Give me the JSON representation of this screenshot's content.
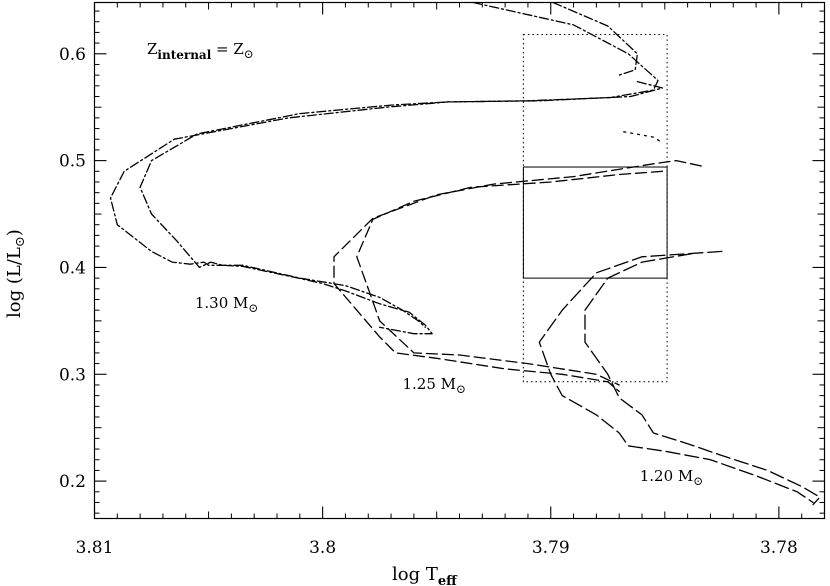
{
  "chart_data": {
    "type": "line",
    "title": "",
    "xlabel": "log  T",
    "xlabel_sub": "eff",
    "ylabel": "log  (L/L",
    "ylabel_sun": "⊙",
    "ylabel_close": ")",
    "xlim": [
      3.81,
      3.778
    ],
    "ylim": [
      0.165,
      0.648
    ],
    "x_reversed": true,
    "grid": false,
    "legend": "none",
    "xticks": [
      {
        "value": 3.81,
        "label": "3.81"
      },
      {
        "value": 3.8,
        "label": "3.8"
      },
      {
        "value": 3.79,
        "label": "3.79"
      },
      {
        "value": 3.78,
        "label": "3.78"
      }
    ],
    "yticks": [
      {
        "value": 0.2,
        "label": "0.2"
      },
      {
        "value": 0.3,
        "label": "0.3"
      },
      {
        "value": 0.4,
        "label": "0.4"
      },
      {
        "value": 0.5,
        "label": "0.5"
      },
      {
        "value": 0.6,
        "label": "0.6"
      }
    ],
    "annotations": [
      {
        "id": "metallicity",
        "text": "Z",
        "sub": "internal",
        "rest": "  = Z",
        "sun": "⊙",
        "x": 3.8077,
        "y": 0.6
      },
      {
        "id": "mass-130",
        "text": "1.30  M",
        "sun": "⊙",
        "x": 3.8056,
        "y": 0.362
      },
      {
        "id": "mass-125",
        "text": "1.25  M",
        "sun": "⊙",
        "x": 3.7965,
        "y": 0.286
      },
      {
        "id": "mass-120",
        "text": "1.20  M",
        "sun": "⊙",
        "x": 3.7861,
        "y": 0.2
      }
    ],
    "boxes": [
      {
        "name": "dotted-box",
        "style": "dotted",
        "x": [
          3.7912,
          3.7849
        ],
        "y": [
          0.293,
          0.618
        ]
      },
      {
        "name": "solid-box",
        "style": "solid",
        "x": [
          3.7912,
          3.7849
        ],
        "y": [
          0.39,
          0.494
        ]
      }
    ],
    "series": [
      {
        "mass": "1.30",
        "dash": "9 3 2 3",
        "points": [
          [
            3.7934,
            0.648
          ],
          [
            3.789,
            0.627
          ],
          [
            3.7866,
            0.6
          ],
          [
            3.7853,
            0.575
          ],
          [
            3.7855,
            0.566
          ],
          [
            3.7874,
            0.559
          ],
          [
            3.791,
            0.556
          ],
          [
            3.7945,
            0.555
          ],
          [
            3.797,
            0.552
          ],
          [
            3.801,
            0.544
          ],
          [
            3.8055,
            0.525
          ],
          [
            3.8075,
            0.5
          ],
          [
            3.808,
            0.475
          ],
          [
            3.8075,
            0.45
          ],
          [
            3.8064,
            0.425
          ],
          [
            3.8056,
            0.405
          ],
          [
            3.8054,
            0.4
          ],
          [
            3.8049,
            0.405
          ],
          [
            3.8044,
            0.402
          ],
          [
            3.8035,
            0.401
          ],
          [
            3.8015,
            0.392
          ],
          [
            3.8,
            0.385
          ],
          [
            3.799,
            0.378
          ],
          [
            3.7975,
            0.366
          ],
          [
            3.7962,
            0.358
          ],
          [
            3.7955,
            0.346
          ],
          [
            3.7952,
            0.338
          ],
          [
            3.796,
            0.338
          ],
          [
            3.7975,
            0.344
          ]
        ]
      },
      {
        "mass": "1.30",
        "dash": "9 3 2 3",
        "points": [
          [
            3.7899,
            0.648
          ],
          [
            3.7875,
            0.626
          ],
          [
            3.7862,
            0.6
          ],
          [
            3.7863,
            0.585
          ],
          [
            3.787,
            0.58
          ]
        ]
      },
      {
        "mass": "1.30",
        "dash": "9 3 2 3",
        "points": [
          [
            3.7862,
            0.574
          ],
          [
            3.7851,
            0.568
          ],
          [
            3.7865,
            0.56
          ],
          [
            3.7905,
            0.556
          ],
          [
            3.7945,
            0.555
          ],
          [
            3.7972,
            0.55
          ],
          [
            3.8015,
            0.54
          ],
          [
            3.8065,
            0.52
          ],
          [
            3.8087,
            0.49
          ],
          [
            3.8093,
            0.465
          ],
          [
            3.809,
            0.44
          ],
          [
            3.8075,
            0.415
          ],
          [
            3.8066,
            0.405
          ],
          [
            3.8058,
            0.403
          ],
          [
            3.8052,
            0.405
          ],
          [
            3.805,
            0.402
          ],
          [
            3.8035,
            0.402
          ],
          [
            3.801,
            0.39
          ],
          [
            3.799,
            0.383
          ],
          [
            3.7975,
            0.372
          ],
          [
            3.7965,
            0.36
          ],
          [
            3.7958,
            0.35
          ],
          [
            3.7955,
            0.344
          ]
        ]
      },
      {
        "mass": "1.30",
        "dash": "2 5",
        "points": [
          [
            3.7868,
            0.527
          ],
          [
            3.7855,
            0.522
          ],
          [
            3.7852,
            0.518
          ]
        ]
      },
      {
        "mass": "1.25",
        "dash": "11 5",
        "points": [
          [
            3.7834,
            0.495
          ],
          [
            3.7845,
            0.5
          ],
          [
            3.7855,
            0.497
          ],
          [
            3.789,
            0.485
          ],
          [
            3.7925,
            0.478
          ],
          [
            3.795,
            0.468
          ],
          [
            3.7978,
            0.446
          ],
          [
            3.7995,
            0.41
          ],
          [
            3.7995,
            0.385
          ],
          [
            3.7985,
            0.36
          ],
          [
            3.7975,
            0.335
          ],
          [
            3.7968,
            0.32
          ],
          [
            3.795,
            0.315
          ],
          [
            3.792,
            0.305
          ],
          [
            3.7895,
            0.3
          ],
          [
            3.7875,
            0.293
          ],
          [
            3.787,
            0.284
          ]
        ]
      },
      {
        "mass": "1.25",
        "dash": "11 5",
        "points": [
          [
            3.7851,
            0.49
          ],
          [
            3.787,
            0.487
          ],
          [
            3.79,
            0.48
          ],
          [
            3.7935,
            0.475
          ],
          [
            3.796,
            0.462
          ],
          [
            3.7978,
            0.445
          ],
          [
            3.7985,
            0.41
          ],
          [
            3.798,
            0.38
          ],
          [
            3.7975,
            0.35
          ],
          [
            3.7965,
            0.33
          ],
          [
            3.796,
            0.32
          ],
          [
            3.794,
            0.318
          ],
          [
            3.791,
            0.31
          ],
          [
            3.788,
            0.3
          ],
          [
            3.787,
            0.29
          ]
        ]
      },
      {
        "mass": "1.20",
        "dash": "14 5",
        "points": [
          [
            3.7825,
            0.415
          ],
          [
            3.786,
            0.41
          ],
          [
            3.788,
            0.395
          ],
          [
            3.7895,
            0.36
          ],
          [
            3.7905,
            0.33
          ],
          [
            3.79,
            0.3
          ],
          [
            3.7895,
            0.28
          ],
          [
            3.788,
            0.262
          ],
          [
            3.787,
            0.245
          ],
          [
            3.7866,
            0.233
          ],
          [
            3.785,
            0.228
          ],
          [
            3.783,
            0.22
          ],
          [
            3.781,
            0.205
          ],
          [
            3.7792,
            0.19
          ],
          [
            3.7785,
            0.18
          ]
        ]
      },
      {
        "mass": "1.20",
        "dash": "14 5",
        "points": [
          [
            3.7838,
            0.413
          ],
          [
            3.786,
            0.405
          ],
          [
            3.7875,
            0.39
          ],
          [
            3.7885,
            0.36
          ],
          [
            3.7885,
            0.33
          ],
          [
            3.7875,
            0.3
          ],
          [
            3.787,
            0.278
          ],
          [
            3.786,
            0.262
          ],
          [
            3.7855,
            0.245
          ],
          [
            3.784,
            0.235
          ],
          [
            3.7825,
            0.224
          ],
          [
            3.7805,
            0.21
          ],
          [
            3.779,
            0.195
          ],
          [
            3.7782,
            0.185
          ],
          [
            3.7785,
            0.178
          ]
        ]
      }
    ]
  }
}
